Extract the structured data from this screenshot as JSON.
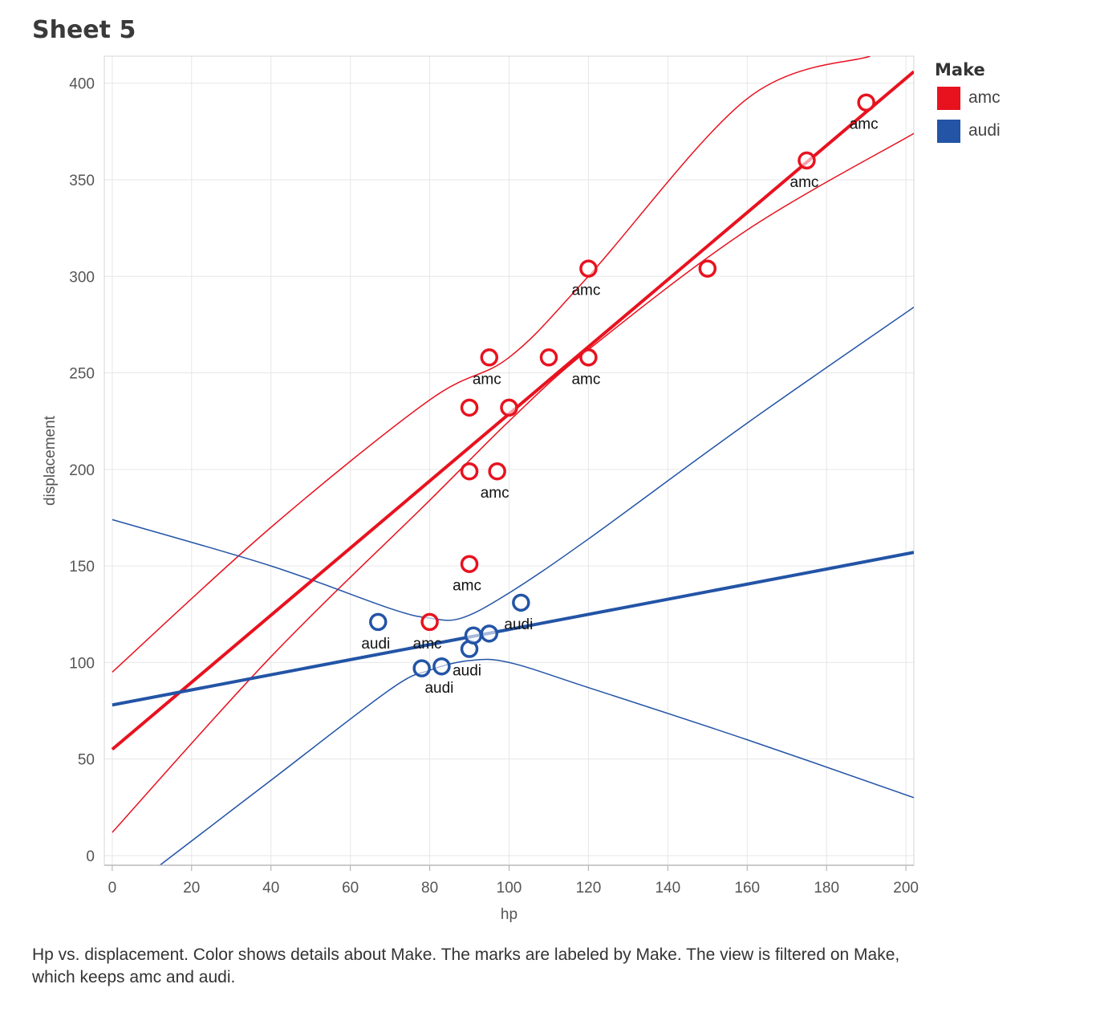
{
  "sheet": {
    "title": "Sheet 5"
  },
  "legend": {
    "title": "Make",
    "items": [
      {
        "label": "amc",
        "color": "#e8121f"
      },
      {
        "label": "audi",
        "color": "#2354a6"
      }
    ]
  },
  "caption": "Hp vs. displacement.  Color shows details about Make.  The marks are labeled by Make. The view is filtered on Make, which keeps amc and audi.",
  "chart_data": {
    "type": "scatter",
    "title": "",
    "xlabel": "hp",
    "ylabel": "displacement",
    "xlim": [
      -2,
      202
    ],
    "ylim": [
      -5,
      414
    ],
    "xticks": [
      0,
      20,
      40,
      60,
      80,
      100,
      120,
      140,
      160,
      180,
      200
    ],
    "yticks": [
      0,
      50,
      100,
      150,
      200,
      250,
      300,
      350,
      400
    ],
    "grid": true,
    "legend_position": "top-right",
    "series": [
      {
        "name": "amc",
        "color": "#e8121f",
        "points": [
          {
            "x": 190,
            "y": 390,
            "label": "amc"
          },
          {
            "x": 175,
            "y": 360,
            "label": "amc"
          },
          {
            "x": 150,
            "y": 304,
            "label": ""
          },
          {
            "x": 120,
            "y": 304,
            "label": "amc"
          },
          {
            "x": 95,
            "y": 258,
            "label": "amc"
          },
          {
            "x": 110,
            "y": 258,
            "label": ""
          },
          {
            "x": 120,
            "y": 258,
            "label": "amc"
          },
          {
            "x": 90,
            "y": 232,
            "label": ""
          },
          {
            "x": 100,
            "y": 232,
            "label": ""
          },
          {
            "x": 90,
            "y": 199,
            "label": ""
          },
          {
            "x": 97,
            "y": 199,
            "label": "amc"
          },
          {
            "x": 90,
            "y": 151,
            "label": "amc"
          },
          {
            "x": 80,
            "y": 121,
            "label": "amc"
          }
        ],
        "trend": {
          "line": [
            [
              0,
              55
            ],
            [
              202,
              406
            ]
          ],
          "band_upper": [
            [
              0,
              95
            ],
            [
              40,
              170
            ],
            [
              80,
              236
            ],
            [
              100,
              258
            ],
            [
              120,
              300
            ],
            [
              160,
              392
            ],
            [
              191,
              414
            ]
          ],
          "band_lower": [
            [
              0,
              12
            ],
            [
              40,
              103
            ],
            [
              80,
              184
            ],
            [
              100,
              225
            ],
            [
              120,
              262
            ],
            [
              160,
              324
            ],
            [
              202,
              374
            ]
          ]
        }
      },
      {
        "name": "audi",
        "color": "#2354a6",
        "points": [
          {
            "x": 67,
            "y": 121,
            "label": "audi"
          },
          {
            "x": 78,
            "y": 97,
            "label": ""
          },
          {
            "x": 83,
            "y": 98,
            "label": "audi"
          },
          {
            "x": 90,
            "y": 107,
            "label": "audi"
          },
          {
            "x": 91,
            "y": 114,
            "label": ""
          },
          {
            "x": 95,
            "y": 115,
            "label": ""
          },
          {
            "x": 103,
            "y": 131,
            "label": "audi"
          }
        ],
        "trend": {
          "line": [
            [
              0,
              78
            ],
            [
              202,
              157
            ]
          ],
          "band_upper": [
            [
              0,
              174
            ],
            [
              40,
              150
            ],
            [
              70,
              128
            ],
            [
              80,
              123
            ],
            [
              88,
              123
            ],
            [
              100,
              136
            ],
            [
              120,
              164
            ],
            [
              160,
              224
            ],
            [
              202,
              284
            ]
          ],
          "band_lower": [
            [
              12,
              -5
            ],
            [
              40,
              39
            ],
            [
              70,
              86
            ],
            [
              80,
              96
            ],
            [
              90,
              101
            ],
            [
              100,
              100
            ],
            [
              120,
              87
            ],
            [
              160,
              60
            ],
            [
              202,
              30
            ]
          ]
        }
      }
    ]
  }
}
